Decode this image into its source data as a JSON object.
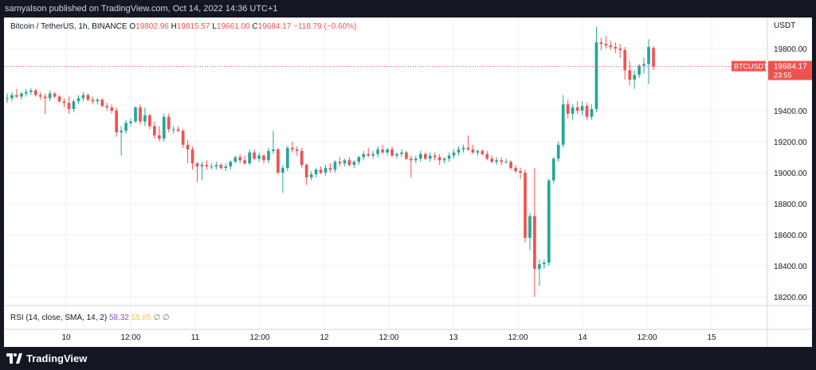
{
  "header": {
    "published_text": "samyalson published on TradingView.com, Oct 14, 2022 14:36 UTC+1"
  },
  "legend": {
    "symbol": "Bitcoin / TetherUS, 1h, BINANCE",
    "open_label": "O",
    "open": "19802.96",
    "high_label": "H",
    "high": "19815.57",
    "low_label": "L",
    "low": "19661.00",
    "close_label": "C",
    "close": "19684.17",
    "change": "−118.79 (−0.60%)"
  },
  "price_axis": {
    "currency": "USDT",
    "ticks": [
      "19800.00",
      "19400.00",
      "19200.00",
      "19000.00",
      "18800.00",
      "18600.00",
      "18400.00",
      "18200.00"
    ],
    "tag_symbol": "BTCUSDT",
    "tag_price": "19684.17",
    "tag_countdown": "23:55"
  },
  "rsi": {
    "label": "RSI (14, close, SMA, 14, 2)",
    "value": "58.32",
    "value2": "55.85",
    "placeholder1": "∅",
    "placeholder2": "∅"
  },
  "time_axis": {
    "ticks": [
      "10",
      "12:00",
      "11",
      "12:00",
      "12",
      "12:00",
      "13",
      "12:00",
      "14",
      "12:00",
      "15"
    ]
  },
  "footer": {
    "brand": "TradingView"
  },
  "colors": {
    "up": "#26a69a",
    "down": "#ef5350",
    "last_price_line": "#ef5350",
    "grid": "#edf0f5",
    "rsi_value": "#7e57c2",
    "rsi_ma": "#f7c948"
  },
  "chart_data": {
    "type": "candlestick",
    "title": "Bitcoin / TetherUS, 1h, BINANCE",
    "x_unit": "1h candles (index)",
    "y_unit": "USDT",
    "ylim": [
      18150,
      20000
    ],
    "grid": true,
    "last_price": 19684.17,
    "candles": [
      {
        "o": 19480,
        "h": 19510,
        "l": 19450,
        "c": 19480
      },
      {
        "o": 19480,
        "h": 19520,
        "l": 19460,
        "c": 19500
      },
      {
        "o": 19500,
        "h": 19540,
        "l": 19480,
        "c": 19490
      },
      {
        "o": 19490,
        "h": 19520,
        "l": 19470,
        "c": 19510
      },
      {
        "o": 19510,
        "h": 19540,
        "l": 19490,
        "c": 19520
      },
      {
        "o": 19520,
        "h": 19545,
        "l": 19500,
        "c": 19530
      },
      {
        "o": 19530,
        "h": 19540,
        "l": 19490,
        "c": 19500
      },
      {
        "o": 19500,
        "h": 19520,
        "l": 19470,
        "c": 19490
      },
      {
        "o": 19490,
        "h": 19510,
        "l": 19380,
        "c": 19480
      },
      {
        "o": 19480,
        "h": 19530,
        "l": 19460,
        "c": 19510
      },
      {
        "o": 19510,
        "h": 19520,
        "l": 19480,
        "c": 19490
      },
      {
        "o": 19490,
        "h": 19500,
        "l": 19450,
        "c": 19460
      },
      {
        "o": 19460,
        "h": 19480,
        "l": 19420,
        "c": 19450
      },
      {
        "o": 19450,
        "h": 19490,
        "l": 19380,
        "c": 19410
      },
      {
        "o": 19410,
        "h": 19470,
        "l": 19390,
        "c": 19460
      },
      {
        "o": 19460,
        "h": 19500,
        "l": 19440,
        "c": 19480
      },
      {
        "o": 19480,
        "h": 19520,
        "l": 19460,
        "c": 19500
      },
      {
        "o": 19500,
        "h": 19510,
        "l": 19460,
        "c": 19470
      },
      {
        "o": 19470,
        "h": 19490,
        "l": 19440,
        "c": 19460
      },
      {
        "o": 19460,
        "h": 19480,
        "l": 19440,
        "c": 19470
      },
      {
        "o": 19470,
        "h": 19480,
        "l": 19420,
        "c": 19430
      },
      {
        "o": 19430,
        "h": 19450,
        "l": 19400,
        "c": 19420
      },
      {
        "o": 19420,
        "h": 19440,
        "l": 19380,
        "c": 19400
      },
      {
        "o": 19400,
        "h": 19420,
        "l": 19230,
        "c": 19260
      },
      {
        "o": 19260,
        "h": 19300,
        "l": 19110,
        "c": 19270
      },
      {
        "o": 19270,
        "h": 19340,
        "l": 19250,
        "c": 19320
      },
      {
        "o": 19320,
        "h": 19350,
        "l": 19300,
        "c": 19330
      },
      {
        "o": 19330,
        "h": 19430,
        "l": 19320,
        "c": 19420
      },
      {
        "o": 19420,
        "h": 19440,
        "l": 19310,
        "c": 19330
      },
      {
        "o": 19330,
        "h": 19420,
        "l": 19300,
        "c": 19370
      },
      {
        "o": 19370,
        "h": 19380,
        "l": 19280,
        "c": 19300
      },
      {
        "o": 19300,
        "h": 19330,
        "l": 19220,
        "c": 19240
      },
      {
        "o": 19240,
        "h": 19300,
        "l": 19200,
        "c": 19220
      },
      {
        "o": 19220,
        "h": 19380,
        "l": 19200,
        "c": 19360
      },
      {
        "o": 19360,
        "h": 19380,
        "l": 19260,
        "c": 19280
      },
      {
        "o": 19280,
        "h": 19300,
        "l": 19250,
        "c": 19280
      },
      {
        "o": 19280,
        "h": 19300,
        "l": 19260,
        "c": 19270
      },
      {
        "o": 19270,
        "h": 19280,
        "l": 19160,
        "c": 19180
      },
      {
        "o": 19180,
        "h": 19210,
        "l": 19060,
        "c": 19150
      },
      {
        "o": 19150,
        "h": 19170,
        "l": 19020,
        "c": 19060
      },
      {
        "o": 19060,
        "h": 19070,
        "l": 18940,
        "c": 19040
      },
      {
        "o": 19040,
        "h": 19070,
        "l": 18950,
        "c": 19050
      },
      {
        "o": 19050,
        "h": 19080,
        "l": 19020,
        "c": 19040
      },
      {
        "o": 19040,
        "h": 19060,
        "l": 19020,
        "c": 19040
      },
      {
        "o": 19040,
        "h": 19070,
        "l": 19020,
        "c": 19050
      },
      {
        "o": 19050,
        "h": 19060,
        "l": 19020,
        "c": 19030
      },
      {
        "o": 19030,
        "h": 19060,
        "l": 19010,
        "c": 19040
      },
      {
        "o": 19040,
        "h": 19080,
        "l": 19020,
        "c": 19070
      },
      {
        "o": 19070,
        "h": 19110,
        "l": 19060,
        "c": 19100
      },
      {
        "o": 19100,
        "h": 19120,
        "l": 19060,
        "c": 19080
      },
      {
        "o": 19080,
        "h": 19110,
        "l": 19050,
        "c": 19060
      },
      {
        "o": 19060,
        "h": 19150,
        "l": 19050,
        "c": 19130
      },
      {
        "o": 19130,
        "h": 19150,
        "l": 19080,
        "c": 19090
      },
      {
        "o": 19090,
        "h": 19130,
        "l": 19070,
        "c": 19110
      },
      {
        "o": 19110,
        "h": 19120,
        "l": 19060,
        "c": 19080
      },
      {
        "o": 19080,
        "h": 19160,
        "l": 19060,
        "c": 19140
      },
      {
        "o": 19140,
        "h": 19270,
        "l": 19120,
        "c": 19150
      },
      {
        "o": 19150,
        "h": 19160,
        "l": 18990,
        "c": 19000
      },
      {
        "o": 19000,
        "h": 19050,
        "l": 18870,
        "c": 19030
      },
      {
        "o": 19030,
        "h": 19170,
        "l": 19010,
        "c": 19160
      },
      {
        "o": 19160,
        "h": 19200,
        "l": 19130,
        "c": 19150
      },
      {
        "o": 19150,
        "h": 19170,
        "l": 19110,
        "c": 19140
      },
      {
        "o": 19140,
        "h": 19160,
        "l": 19030,
        "c": 19050
      },
      {
        "o": 19050,
        "h": 19060,
        "l": 18920,
        "c": 18970
      },
      {
        "o": 18970,
        "h": 19010,
        "l": 18950,
        "c": 18990
      },
      {
        "o": 18990,
        "h": 19030,
        "l": 18970,
        "c": 19020
      },
      {
        "o": 19020,
        "h": 19040,
        "l": 18990,
        "c": 19000
      },
      {
        "o": 19000,
        "h": 19050,
        "l": 18980,
        "c": 19030
      },
      {
        "o": 19030,
        "h": 19060,
        "l": 19000,
        "c": 19020
      },
      {
        "o": 19020,
        "h": 19080,
        "l": 19000,
        "c": 19070
      },
      {
        "o": 19070,
        "h": 19100,
        "l": 19040,
        "c": 19060
      },
      {
        "o": 19060,
        "h": 19090,
        "l": 19040,
        "c": 19080
      },
      {
        "o": 19080,
        "h": 19100,
        "l": 19040,
        "c": 19050
      },
      {
        "o": 19050,
        "h": 19080,
        "l": 19030,
        "c": 19070
      },
      {
        "o": 19070,
        "h": 19110,
        "l": 19050,
        "c": 19100
      },
      {
        "o": 19100,
        "h": 19140,
        "l": 19080,
        "c": 19120
      },
      {
        "o": 19120,
        "h": 19160,
        "l": 19100,
        "c": 19110
      },
      {
        "o": 19110,
        "h": 19140,
        "l": 19090,
        "c": 19120
      },
      {
        "o": 19120,
        "h": 19170,
        "l": 19100,
        "c": 19150
      },
      {
        "o": 19150,
        "h": 19180,
        "l": 19120,
        "c": 19130
      },
      {
        "o": 19130,
        "h": 19160,
        "l": 19110,
        "c": 19150
      },
      {
        "o": 19150,
        "h": 19170,
        "l": 19100,
        "c": 19110
      },
      {
        "o": 19110,
        "h": 19130,
        "l": 19090,
        "c": 19120
      },
      {
        "o": 19120,
        "h": 19150,
        "l": 19100,
        "c": 19130
      },
      {
        "o": 19130,
        "h": 19140,
        "l": 19080,
        "c": 19090
      },
      {
        "o": 19090,
        "h": 19110,
        "l": 18970,
        "c": 19080
      },
      {
        "o": 19080,
        "h": 19110,
        "l": 19060,
        "c": 19090
      },
      {
        "o": 19090,
        "h": 19140,
        "l": 19070,
        "c": 19120
      },
      {
        "o": 19120,
        "h": 19130,
        "l": 19080,
        "c": 19090
      },
      {
        "o": 19090,
        "h": 19130,
        "l": 19070,
        "c": 19110
      },
      {
        "o": 19110,
        "h": 19130,
        "l": 19080,
        "c": 19100
      },
      {
        "o": 19100,
        "h": 19120,
        "l": 19050,
        "c": 19080
      },
      {
        "o": 19080,
        "h": 19100,
        "l": 19060,
        "c": 19090
      },
      {
        "o": 19090,
        "h": 19130,
        "l": 19070,
        "c": 19110
      },
      {
        "o": 19110,
        "h": 19150,
        "l": 19090,
        "c": 19130
      },
      {
        "o": 19130,
        "h": 19170,
        "l": 19110,
        "c": 19150
      },
      {
        "o": 19150,
        "h": 19180,
        "l": 19130,
        "c": 19160
      },
      {
        "o": 19160,
        "h": 19240,
        "l": 19140,
        "c": 19150
      },
      {
        "o": 19150,
        "h": 19180,
        "l": 19120,
        "c": 19130
      },
      {
        "o": 19130,
        "h": 19150,
        "l": 19110,
        "c": 19140
      },
      {
        "o": 19140,
        "h": 19150,
        "l": 19110,
        "c": 19120
      },
      {
        "o": 19120,
        "h": 19140,
        "l": 19080,
        "c": 19090
      },
      {
        "o": 19090,
        "h": 19110,
        "l": 19060,
        "c": 19070
      },
      {
        "o": 19070,
        "h": 19100,
        "l": 19050,
        "c": 19080
      },
      {
        "o": 19080,
        "h": 19100,
        "l": 19050,
        "c": 19070
      },
      {
        "o": 19070,
        "h": 19090,
        "l": 19060,
        "c": 19070
      },
      {
        "o": 19070,
        "h": 19080,
        "l": 19020,
        "c": 19030
      },
      {
        "o": 19030,
        "h": 19050,
        "l": 19000,
        "c": 19010
      },
      {
        "o": 19010,
        "h": 19030,
        "l": 18960,
        "c": 19000
      },
      {
        "o": 19000,
        "h": 19020,
        "l": 18550,
        "c": 18580
      },
      {
        "o": 18580,
        "h": 18740,
        "l": 18500,
        "c": 18720
      },
      {
        "o": 18720,
        "h": 19030,
        "l": 18200,
        "c": 18380
      },
      {
        "o": 18380,
        "h": 18440,
        "l": 18270,
        "c": 18410
      },
      {
        "o": 18410,
        "h": 18440,
        "l": 18380,
        "c": 18420
      },
      {
        "o": 18420,
        "h": 18960,
        "l": 18400,
        "c": 18950
      },
      {
        "o": 18950,
        "h": 19100,
        "l": 18930,
        "c": 19090
      },
      {
        "o": 19090,
        "h": 19200,
        "l": 19070,
        "c": 19180
      },
      {
        "o": 19180,
        "h": 19500,
        "l": 19160,
        "c": 19440
      },
      {
        "o": 19440,
        "h": 19470,
        "l": 19350,
        "c": 19380
      },
      {
        "o": 19380,
        "h": 19440,
        "l": 19340,
        "c": 19420
      },
      {
        "o": 19420,
        "h": 19460,
        "l": 19380,
        "c": 19400
      },
      {
        "o": 19400,
        "h": 19460,
        "l": 19370,
        "c": 19430
      },
      {
        "o": 19430,
        "h": 19450,
        "l": 19340,
        "c": 19360
      },
      {
        "o": 19360,
        "h": 19440,
        "l": 19340,
        "c": 19410
      },
      {
        "o": 19410,
        "h": 19940,
        "l": 19390,
        "c": 19840
      },
      {
        "o": 19840,
        "h": 19870,
        "l": 19790,
        "c": 19830
      },
      {
        "o": 19830,
        "h": 19880,
        "l": 19800,
        "c": 19820
      },
      {
        "o": 19820,
        "h": 19850,
        "l": 19790,
        "c": 19810
      },
      {
        "o": 19810,
        "h": 19840,
        "l": 19770,
        "c": 19800
      },
      {
        "o": 19800,
        "h": 19830,
        "l": 19740,
        "c": 19790
      },
      {
        "o": 19790,
        "h": 19810,
        "l": 19600,
        "c": 19660
      },
      {
        "o": 19660,
        "h": 19720,
        "l": 19560,
        "c": 19600
      },
      {
        "o": 19600,
        "h": 19660,
        "l": 19540,
        "c": 19630
      },
      {
        "o": 19630,
        "h": 19700,
        "l": 19610,
        "c": 19690
      },
      {
        "o": 19690,
        "h": 19740,
        "l": 19640,
        "c": 19700
      },
      {
        "o": 19700,
        "h": 19860,
        "l": 19570,
        "c": 19810
      },
      {
        "o": 19802.96,
        "h": 19815.57,
        "l": 19661.0,
        "c": 19684.17
      }
    ]
  }
}
